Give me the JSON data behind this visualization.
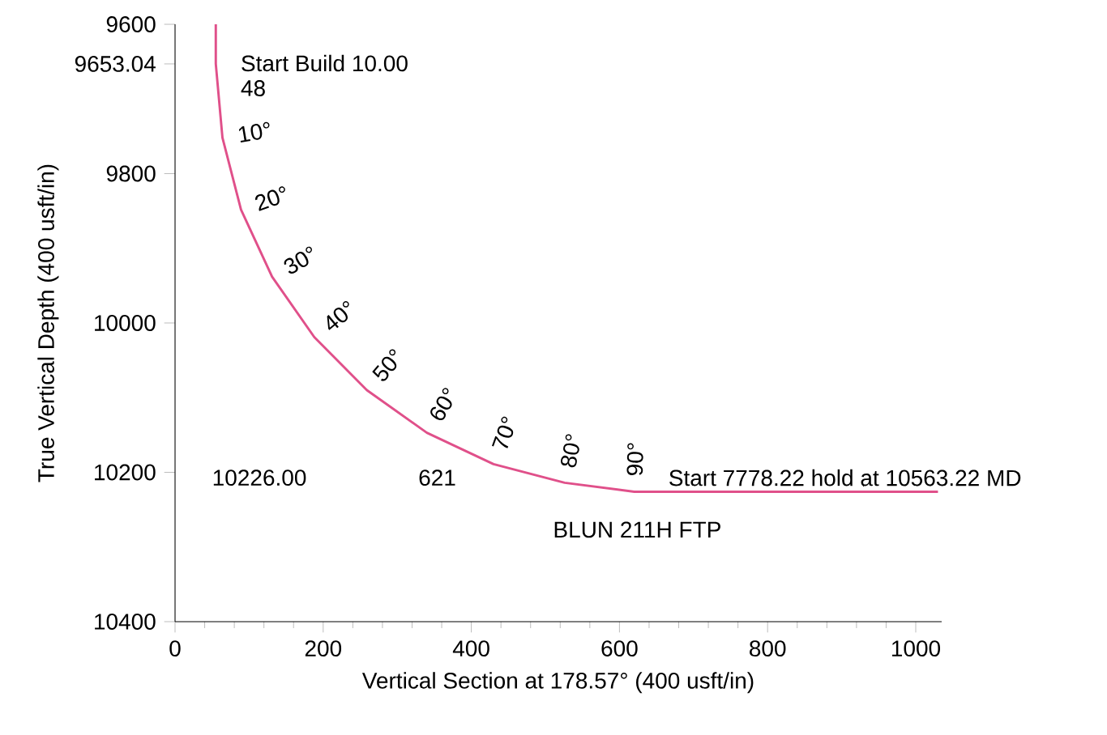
{
  "chart_data": {
    "type": "line",
    "xlabel": "Vertical Section at 178.57° (400 usft/in)",
    "ylabel": "True Vertical Depth (400 usft/in)",
    "xlim": [
      0,
      1035
    ],
    "ylim": [
      10400,
      9600
    ],
    "xticks": [
      0,
      200,
      400,
      600,
      800,
      1000
    ],
    "yticks": [
      9600,
      9653.04,
      9800,
      10000,
      10200,
      10400
    ],
    "grid": false,
    "series": [
      {
        "color": "#e0508a",
        "x": [
          55,
          55,
          64,
          89,
          131,
          188,
          259,
          340,
          430,
          526,
          620,
          1030
        ],
        "values": [
          9600,
          9653,
          9752,
          9848,
          9938,
          10019,
          10090,
          10147,
          10189,
          10214,
          10226,
          10226
        ]
      }
    ],
    "annotations": [
      "Start Build 10.00",
      "48",
      {
        "text": "10°",
        "x": 64,
        "y": 9752
      },
      {
        "text": "20°",
        "x": 89,
        "y": 9848
      },
      {
        "text": "30°",
        "x": 131,
        "y": 9938
      },
      {
        "text": "40°",
        "x": 188,
        "y": 10019
      },
      {
        "text": "50°",
        "x": 259,
        "y": 10090
      },
      {
        "text": "60°",
        "x": 340,
        "y": 10147
      },
      {
        "text": "70°",
        "x": 430,
        "y": 10189
      },
      {
        "text": "80°",
        "x": 526,
        "y": 10214
      },
      {
        "text": "90°",
        "x": 620,
        "y": 10226
      },
      "10226.00",
      "621",
      "Start 7778.22 hold at 10563.22 MD",
      "BLUN 211H FTP"
    ]
  }
}
